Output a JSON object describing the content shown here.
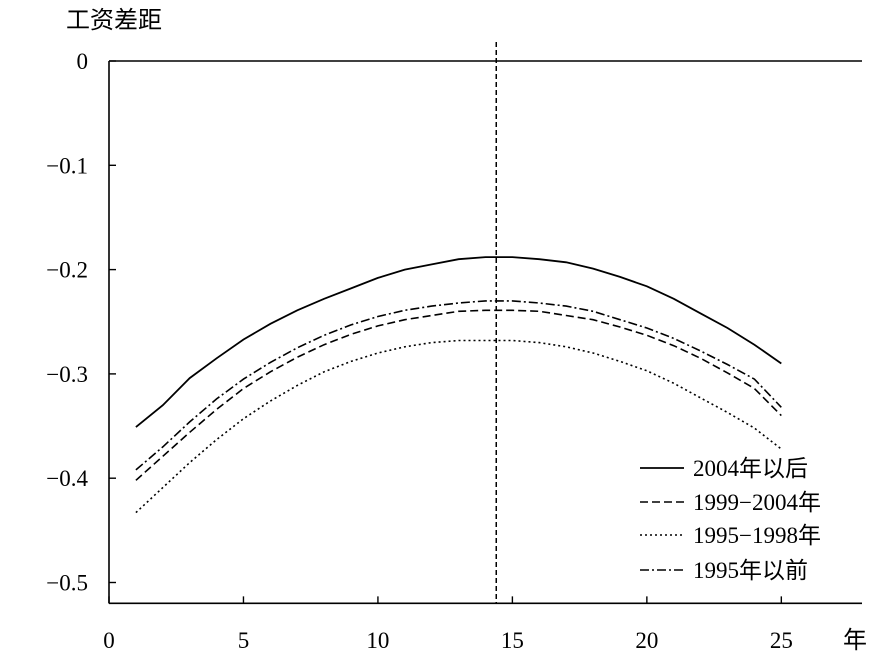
{
  "chart_data": {
    "type": "line",
    "ylabel": "工资差距",
    "xlabel": "年",
    "xlim": [
      0,
      28
    ],
    "ylim": [
      -0.52,
      0.0
    ],
    "xticks": [
      0,
      5,
      10,
      15,
      20,
      25
    ],
    "yticks": [
      0,
      -0.1,
      -0.2,
      -0.3,
      -0.4,
      -0.5
    ],
    "ytick_labels": [
      "0",
      "−0.1",
      "−0.2",
      "−0.3",
      "−0.4",
      "−0.5"
    ],
    "reference_hline": 0,
    "reference_vline": 14.4,
    "legend_position": "bottom-right",
    "colors": {
      "line": "#000000",
      "background": "#ffffff"
    },
    "x": [
      1,
      2,
      3,
      4,
      5,
      6,
      7,
      8,
      9,
      10,
      11,
      12,
      13,
      14,
      15,
      16,
      17,
      18,
      19,
      20,
      21,
      22,
      23,
      24,
      25
    ],
    "series": [
      {
        "name": "2004年以后",
        "style": "solid",
        "values": [
          -0.351,
          -0.33,
          -0.304,
          -0.285,
          -0.267,
          -0.252,
          -0.239,
          -0.228,
          -0.218,
          -0.208,
          -0.2,
          -0.195,
          -0.19,
          -0.188,
          -0.188,
          -0.19,
          -0.193,
          -0.199,
          -0.207,
          -0.216,
          -0.228,
          -0.242,
          -0.256,
          -0.272,
          -0.29
        ]
      },
      {
        "name": "1999−2004年",
        "style": "dashed",
        "values": [
          -0.402,
          -0.379,
          -0.356,
          -0.334,
          -0.314,
          -0.298,
          -0.284,
          -0.272,
          -0.262,
          -0.254,
          -0.248,
          -0.244,
          -0.24,
          -0.239,
          -0.239,
          -0.24,
          -0.244,
          -0.248,
          -0.255,
          -0.263,
          -0.273,
          -0.285,
          -0.299,
          -0.314,
          -0.34
        ]
      },
      {
        "name": "1995−1998年",
        "style": "dotted",
        "values": [
          -0.433,
          -0.409,
          -0.385,
          -0.363,
          -0.343,
          -0.326,
          -0.311,
          -0.298,
          -0.288,
          -0.28,
          -0.274,
          -0.27,
          -0.268,
          -0.268,
          -0.268,
          -0.27,
          -0.274,
          -0.28,
          -0.288,
          -0.297,
          -0.309,
          -0.323,
          -0.337,
          -0.352,
          -0.372
        ]
      },
      {
        "name": "1995年以前",
        "style": "dashdot",
        "values": [
          -0.392,
          -0.37,
          -0.346,
          -0.324,
          -0.305,
          -0.289,
          -0.275,
          -0.263,
          -0.253,
          -0.245,
          -0.239,
          -0.235,
          -0.232,
          -0.23,
          -0.23,
          -0.232,
          -0.235,
          -0.24,
          -0.248,
          -0.256,
          -0.266,
          -0.278,
          -0.291,
          -0.305,
          -0.332
        ]
      }
    ]
  }
}
